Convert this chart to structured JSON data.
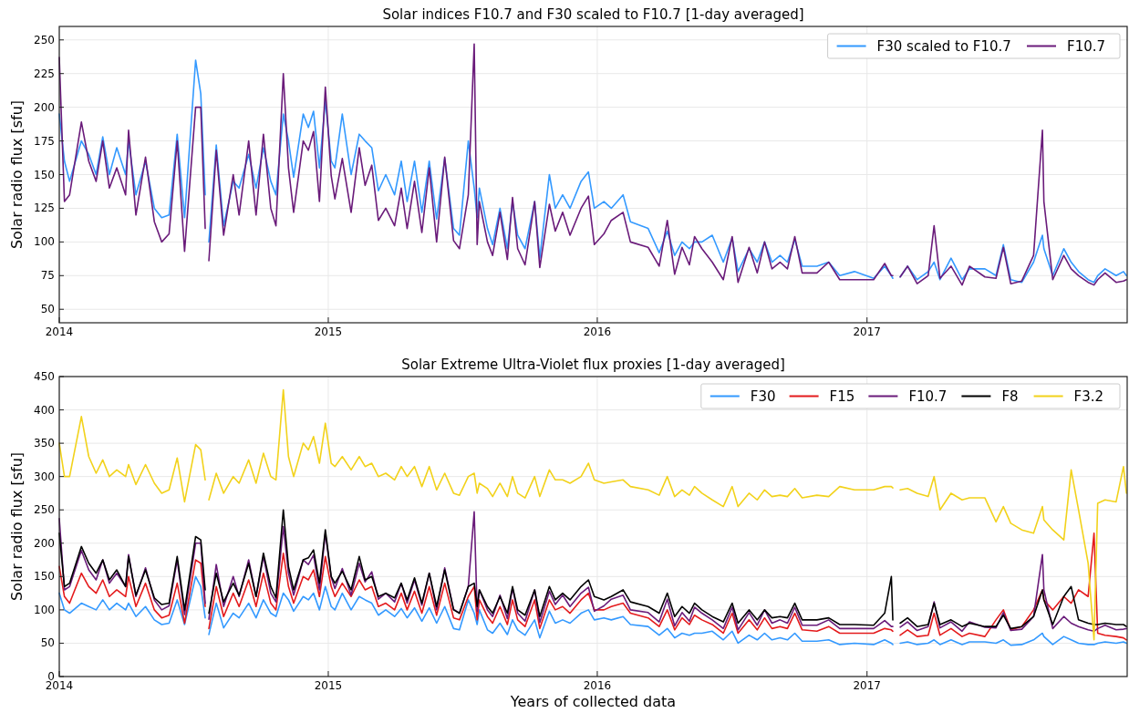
{
  "chart_data": [
    {
      "type": "line",
      "title": "Solar indices F10.7 and F30 scaled to F10.7 [1-day averaged]",
      "ylabel": "Solar radio flux [sfu]",
      "xlim": [
        "2014-01-01",
        "2017-12-20"
      ],
      "ylim": [
        40,
        260
      ],
      "yticks": [
        50,
        75,
        100,
        125,
        150,
        175,
        200,
        225,
        250
      ],
      "xticks": [
        {
          "value": "2014-01-01",
          "label": "2014"
        },
        {
          "value": "2015-01-01",
          "label": "2015"
        },
        {
          "value": "2016-01-01",
          "label": "2016"
        },
        {
          "value": "2017-01-01",
          "label": "2017"
        }
      ],
      "grid": true,
      "legend": "top right",
      "marker": "none",
      "line_style": "solid",
      "x": [
        "2014-01-01",
        "2014-01-08",
        "2014-01-15",
        "2014-01-31",
        "2014-02-10",
        "2014-02-20",
        "2014-03-01",
        "2014-03-10",
        "2014-03-20",
        "2014-04-01",
        "2014-04-05",
        "2014-04-15",
        "2014-04-28",
        "2014-05-10",
        "2014-05-20",
        "2014-05-30",
        "2014-06-10",
        "2014-06-20",
        "2014-07-05",
        "2014-07-12",
        "2014-07-18",
        "2014-07-20",
        "2014-07-23",
        "2014-08-02",
        "2014-08-12",
        "2014-08-25",
        "2014-09-02",
        "2014-09-15",
        "2014-09-25",
        "2014-10-05",
        "2014-10-15",
        "2014-10-22",
        "2014-11-01",
        "2014-11-08",
        "2014-11-15",
        "2014-11-28",
        "2014-12-05",
        "2014-12-12",
        "2014-12-20",
        "2014-12-28",
        "2015-01-05",
        "2015-01-10",
        "2015-01-20",
        "2015-02-01",
        "2015-02-12",
        "2015-02-20",
        "2015-03-01",
        "2015-03-10",
        "2015-03-20",
        "2015-04-01",
        "2015-04-10",
        "2015-04-18",
        "2015-04-28",
        "2015-05-08",
        "2015-05-18",
        "2015-05-28",
        "2015-06-08",
        "2015-06-20",
        "2015-06-28",
        "2015-07-10",
        "2015-07-18",
        "2015-07-22",
        "2015-07-25",
        "2015-08-05",
        "2015-08-12",
        "2015-08-22",
        "2015-09-01",
        "2015-09-08",
        "2015-09-15",
        "2015-09-25",
        "2015-10-08",
        "2015-10-15",
        "2015-10-28",
        "2015-11-05",
        "2015-11-15",
        "2015-11-25",
        "2015-12-10",
        "2015-12-20",
        "2015-12-28",
        "2016-01-10",
        "2016-01-20",
        "2016-02-05",
        "2016-02-15",
        "2016-03-10",
        "2016-03-25",
        "2016-04-05",
        "2016-04-15",
        "2016-04-25",
        "2016-05-05",
        "2016-05-12",
        "2016-05-22",
        "2016-06-05",
        "2016-06-20",
        "2016-07-02",
        "2016-07-10",
        "2016-07-25",
        "2016-08-05",
        "2016-08-15",
        "2016-08-25",
        "2016-09-05",
        "2016-09-15",
        "2016-09-25",
        "2016-10-05",
        "2016-10-25",
        "2016-11-10",
        "2016-11-25",
        "2016-12-15",
        "2017-01-10",
        "2017-01-25",
        "2017-02-03",
        "2017-02-05",
        "2017-02-10",
        "2017-02-15",
        "2017-02-25",
        "2017-03-10",
        "2017-03-25",
        "2017-04-02",
        "2017-04-10",
        "2017-04-25",
        "2017-05-10",
        "2017-05-20",
        "2017-06-10",
        "2017-06-25",
        "2017-07-05",
        "2017-07-15",
        "2017-07-30",
        "2017-08-15",
        "2017-08-27",
        "2017-08-29",
        "2017-09-10",
        "2017-09-25",
        "2017-10-05",
        "2017-10-15",
        "2017-10-28",
        "2017-11-05",
        "2017-11-10",
        "2017-11-20",
        "2017-12-05",
        "2017-12-15",
        "2017-12-19"
      ],
      "series": [
        {
          "name": "F30 scaled to F10.7",
          "color": "#3399ff",
          "values": [
            195,
            160,
            145,
            175,
            165,
            150,
            178,
            150,
            170,
            150,
            175,
            135,
            160,
            125,
            118,
            120,
            180,
            118,
            235,
            210,
            135,
            null,
            100,
            172,
            112,
            145,
            140,
            165,
            140,
            170,
            145,
            135,
            195,
            175,
            148,
            195,
            185,
            197,
            155,
            205,
            160,
            155,
            195,
            150,
            180,
            175,
            170,
            138,
            150,
            135,
            160,
            130,
            160,
            122,
            160,
            117,
            162,
            110,
            105,
            175,
            140,
            118,
            140,
            110,
            98,
            125,
            95,
            130,
            105,
            95,
            130,
            88,
            150,
            125,
            135,
            125,
            145,
            152,
            125,
            130,
            125,
            135,
            115,
            110,
            92,
            108,
            90,
            100,
            95,
            100,
            100,
            105,
            85,
            103,
            78,
            95,
            85,
            100,
            85,
            90,
            85,
            102,
            82,
            82,
            85,
            75,
            78,
            73,
            82,
            75,
            73,
            null,
            74,
            82,
            72,
            78,
            85,
            72,
            88,
            72,
            80,
            80,
            75,
            98,
            72,
            70,
            85,
            105,
            95,
            75,
            95,
            85,
            78,
            72,
            70,
            75,
            80,
            75,
            78,
            75
          ]
        },
        {
          "name": "F10.7",
          "color": "#6a1b7a",
          "values": [
            237,
            130,
            135,
            189,
            160,
            145,
            175,
            140,
            155,
            135,
            183,
            120,
            163,
            115,
            100,
            106,
            175,
            93,
            200,
            200,
            110,
            null,
            86,
            168,
            105,
            150,
            120,
            175,
            120,
            180,
            125,
            112,
            225,
            155,
            122,
            175,
            168,
            182,
            130,
            215,
            149,
            132,
            162,
            122,
            170,
            142,
            157,
            116,
            125,
            112,
            140,
            110,
            145,
            107,
            155,
            100,
            163,
            101,
            95,
            135,
            247,
            98,
            130,
            100,
            90,
            122,
            87,
            133,
            95,
            83,
            130,
            81,
            128,
            108,
            122,
            105,
            125,
            134,
            98,
            106,
            116,
            122,
            100,
            96,
            82,
            116,
            76,
            96,
            83,
            104,
            95,
            85,
            72,
            104,
            70,
            96,
            77,
            100,
            80,
            85,
            80,
            104,
            77,
            77,
            85,
            72,
            72,
            72,
            84,
            75,
            75,
            null,
            74,
            82,
            69,
            75,
            112,
            73,
            82,
            68,
            82,
            74,
            73,
            96,
            69,
            71,
            90,
            183,
            130,
            72,
            90,
            80,
            75,
            70,
            68,
            72,
            77,
            70,
            71,
            72
          ]
        }
      ]
    },
    {
      "type": "line",
      "title": "Solar Extreme Ultra-Violet flux proxies [1-day averaged]",
      "xlabel": "Years of collected data",
      "ylabel": "Solar radio flux [sfu]",
      "xlim": [
        "2014-01-01",
        "2017-12-20"
      ],
      "ylim": [
        0,
        450
      ],
      "yticks": [
        0,
        50,
        100,
        150,
        200,
        250,
        300,
        350,
        400,
        450
      ],
      "xticks": [
        {
          "value": "2014-01-01",
          "label": "2014"
        },
        {
          "value": "2015-01-01",
          "label": "2015"
        },
        {
          "value": "2016-01-01",
          "label": "2016"
        },
        {
          "value": "2017-01-01",
          "label": "2017"
        }
      ],
      "grid": true,
      "legend": "top right",
      "marker": "none",
      "line_style": "solid",
      "x": [
        "2014-01-01",
        "2014-01-08",
        "2014-01-15",
        "2014-01-31",
        "2014-02-10",
        "2014-02-20",
        "2014-03-01",
        "2014-03-10",
        "2014-03-20",
        "2014-04-01",
        "2014-04-05",
        "2014-04-15",
        "2014-04-28",
        "2014-05-10",
        "2014-05-20",
        "2014-05-30",
        "2014-06-10",
        "2014-06-20",
        "2014-07-05",
        "2014-07-12",
        "2014-07-18",
        "2014-07-20",
        "2014-07-23",
        "2014-08-02",
        "2014-08-12",
        "2014-08-25",
        "2014-09-02",
        "2014-09-15",
        "2014-09-25",
        "2014-10-05",
        "2014-10-15",
        "2014-10-22",
        "2014-11-01",
        "2014-11-08",
        "2014-11-15",
        "2014-11-28",
        "2014-12-05",
        "2014-12-12",
        "2014-12-20",
        "2014-12-28",
        "2015-01-05",
        "2015-01-10",
        "2015-01-20",
        "2015-02-01",
        "2015-02-12",
        "2015-02-20",
        "2015-03-01",
        "2015-03-10",
        "2015-03-20",
        "2015-04-01",
        "2015-04-10",
        "2015-04-18",
        "2015-04-28",
        "2015-05-08",
        "2015-05-18",
        "2015-05-28",
        "2015-06-08",
        "2015-06-20",
        "2015-06-28",
        "2015-07-10",
        "2015-07-18",
        "2015-07-22",
        "2015-07-25",
        "2015-08-05",
        "2015-08-12",
        "2015-08-22",
        "2015-09-01",
        "2015-09-08",
        "2015-09-15",
        "2015-09-25",
        "2015-10-08",
        "2015-10-15",
        "2015-10-28",
        "2015-11-05",
        "2015-11-15",
        "2015-11-25",
        "2015-12-10",
        "2015-12-20",
        "2015-12-28",
        "2016-01-10",
        "2016-01-20",
        "2016-02-05",
        "2016-02-15",
        "2016-03-10",
        "2016-03-25",
        "2016-04-05",
        "2016-04-15",
        "2016-04-25",
        "2016-05-05",
        "2016-05-12",
        "2016-05-22",
        "2016-06-05",
        "2016-06-20",
        "2016-07-02",
        "2016-07-10",
        "2016-07-25",
        "2016-08-05",
        "2016-08-15",
        "2016-08-25",
        "2016-09-05",
        "2016-09-15",
        "2016-09-25",
        "2016-10-05",
        "2016-10-25",
        "2016-11-10",
        "2016-11-25",
        "2016-12-15",
        "2017-01-10",
        "2017-01-25",
        "2017-02-03",
        "2017-02-05",
        "2017-02-10",
        "2017-02-15",
        "2017-02-25",
        "2017-03-10",
        "2017-03-25",
        "2017-04-02",
        "2017-04-10",
        "2017-04-25",
        "2017-05-10",
        "2017-05-20",
        "2017-06-10",
        "2017-06-25",
        "2017-07-05",
        "2017-07-15",
        "2017-07-30",
        "2017-08-15",
        "2017-08-27",
        "2017-08-29",
        "2017-09-10",
        "2017-09-25",
        "2017-10-05",
        "2017-10-15",
        "2017-10-28",
        "2017-11-05",
        "2017-11-10",
        "2017-11-20",
        "2017-12-05",
        "2017-12-15",
        "2017-12-19"
      ],
      "series": [
        {
          "name": "F30",
          "color": "#3399ff",
          "values": [
            125,
            100,
            95,
            110,
            105,
            100,
            115,
            100,
            110,
            100,
            110,
            90,
            105,
            85,
            78,
            80,
            115,
            78,
            150,
            135,
            88,
            null,
            63,
            110,
            73,
            95,
            88,
            110,
            88,
            115,
            95,
            90,
            125,
            115,
            98,
            120,
            115,
            125,
            100,
            135,
            105,
            100,
            125,
            100,
            120,
            115,
            110,
            92,
            100,
            90,
            102,
            88,
            103,
            83,
            103,
            80,
            105,
            72,
            70,
            115,
            95,
            78,
            100,
            70,
            65,
            80,
            63,
            85,
            70,
            62,
            85,
            58,
            98,
            80,
            85,
            80,
            95,
            100,
            85,
            88,
            85,
            90,
            78,
            75,
            62,
            72,
            58,
            65,
            62,
            65,
            65,
            68,
            55,
            68,
            50,
            62,
            55,
            65,
            55,
            58,
            55,
            65,
            53,
            53,
            55,
            48,
            50,
            48,
            55,
            50,
            48,
            null,
            50,
            52,
            48,
            50,
            55,
            48,
            55,
            48,
            52,
            52,
            50,
            55,
            47,
            48,
            55,
            65,
            60,
            48,
            60,
            55,
            50,
            48,
            48,
            50,
            52,
            50,
            52,
            50
          ]
        },
        {
          "name": "F15",
          "color": "#e41a1c",
          "values": [
            165,
            120,
            110,
            155,
            135,
            125,
            145,
            120,
            130,
            120,
            150,
            105,
            140,
            100,
            88,
            92,
            140,
            80,
            175,
            170,
            105,
            null,
            72,
            135,
            90,
            125,
            105,
            145,
            105,
            155,
            110,
            100,
            185,
            135,
            110,
            150,
            145,
            160,
            120,
            180,
            135,
            120,
            140,
            120,
            145,
            130,
            135,
            105,
            110,
            100,
            125,
            100,
            128,
            95,
            135,
            92,
            140,
            88,
            85,
            120,
            135,
            85,
            115,
            90,
            80,
            105,
            78,
            115,
            85,
            75,
            115,
            72,
            115,
            100,
            105,
            95,
            115,
            125,
            100,
            100,
            105,
            110,
            95,
            88,
            75,
            100,
            70,
            88,
            78,
            92,
            85,
            78,
            65,
            95,
            65,
            85,
            70,
            88,
            72,
            75,
            72,
            95,
            70,
            68,
            75,
            65,
            65,
            65,
            72,
            70,
            68,
            null,
            62,
            70,
            60,
            62,
            95,
            62,
            72,
            60,
            65,
            60,
            85,
            100,
            70,
            75,
            100,
            130,
            115,
            100,
            120,
            110,
            130,
            120,
            215,
            65,
            62,
            60,
            58,
            55
          ]
        },
        {
          "name": "F10.7",
          "color": "#6a1b7a",
          "values": [
            237,
            130,
            135,
            189,
            160,
            145,
            175,
            140,
            155,
            135,
            183,
            120,
            163,
            115,
            100,
            106,
            175,
            93,
            200,
            200,
            110,
            null,
            86,
            168,
            105,
            150,
            120,
            175,
            120,
            180,
            125,
            112,
            225,
            155,
            122,
            175,
            168,
            182,
            130,
            215,
            149,
            132,
            162,
            122,
            170,
            142,
            157,
            116,
            125,
            112,
            140,
            110,
            145,
            107,
            155,
            100,
            163,
            101,
            95,
            135,
            247,
            98,
            130,
            100,
            90,
            122,
            87,
            133,
            95,
            83,
            130,
            81,
            128,
            108,
            122,
            105,
            125,
            134,
            98,
            106,
            116,
            122,
            100,
            96,
            82,
            116,
            76,
            96,
            83,
            104,
            95,
            85,
            72,
            104,
            70,
            96,
            77,
            100,
            80,
            85,
            80,
            104,
            77,
            77,
            85,
            72,
            72,
            72,
            84,
            75,
            75,
            null,
            74,
            82,
            69,
            75,
            112,
            73,
            82,
            68,
            82,
            74,
            73,
            96,
            69,
            71,
            90,
            183,
            130,
            72,
            90,
            80,
            75,
            70,
            68,
            72,
            77,
            70,
            71,
            72
          ]
        },
        {
          "name": "F8",
          "color": "#000000",
          "values": [
            215,
            135,
            140,
            195,
            170,
            155,
            175,
            145,
            160,
            135,
            180,
            122,
            160,
            118,
            108,
            110,
            180,
            100,
            210,
            205,
            130,
            null,
            95,
            155,
            112,
            140,
            122,
            170,
            120,
            185,
            135,
            118,
            250,
            165,
            130,
            175,
            178,
            190,
            140,
            220,
            150,
            140,
            158,
            130,
            180,
            145,
            150,
            120,
            125,
            118,
            140,
            115,
            148,
            110,
            155,
            105,
            160,
            100,
            95,
            135,
            140,
            105,
            130,
            105,
            95,
            120,
            95,
            135,
            100,
            92,
            130,
            90,
            135,
            115,
            125,
            115,
            135,
            145,
            120,
            115,
            120,
            130,
            112,
            105,
            95,
            125,
            90,
            105,
            95,
            110,
            100,
            90,
            82,
            110,
            80,
            100,
            85,
            100,
            88,
            90,
            88,
            110,
            85,
            85,
            88,
            78,
            78,
            77,
            95,
            150,
            85,
            null,
            80,
            88,
            75,
            78,
            110,
            78,
            85,
            75,
            80,
            75,
            75,
            92,
            72,
            75,
            90,
            130,
            115,
            78,
            120,
            135,
            85,
            80,
            78,
            78,
            80,
            78,
            78,
            75
          ]
        },
        {
          "name": "F3.2",
          "color": "#f2d21b",
          "values": [
            350,
            300,
            300,
            390,
            330,
            305,
            325,
            300,
            310,
            300,
            318,
            288,
            318,
            290,
            275,
            280,
            328,
            262,
            348,
            340,
            295,
            null,
            265,
            305,
            275,
            300,
            290,
            325,
            290,
            335,
            300,
            295,
            430,
            330,
            300,
            350,
            340,
            360,
            320,
            380,
            320,
            315,
            330,
            310,
            330,
            315,
            320,
            300,
            305,
            295,
            315,
            300,
            315,
            285,
            315,
            280,
            305,
            275,
            272,
            300,
            305,
            275,
            290,
            282,
            270,
            290,
            270,
            300,
            275,
            268,
            300,
            270,
            310,
            295,
            295,
            290,
            300,
            320,
            295,
            290,
            292,
            295,
            285,
            280,
            272,
            300,
            270,
            280,
            272,
            285,
            275,
            265,
            255,
            285,
            255,
            275,
            265,
            280,
            270,
            272,
            270,
            282,
            268,
            272,
            270,
            285,
            280,
            280,
            285,
            285,
            283,
            null,
            280,
            282,
            275,
            270,
            300,
            250,
            275,
            265,
            268,
            268,
            232,
            255,
            230,
            220,
            215,
            255,
            235,
            220,
            205,
            310,
            250,
            170,
            55,
            260,
            265,
            262,
            315,
            275
          ]
        }
      ]
    }
  ]
}
